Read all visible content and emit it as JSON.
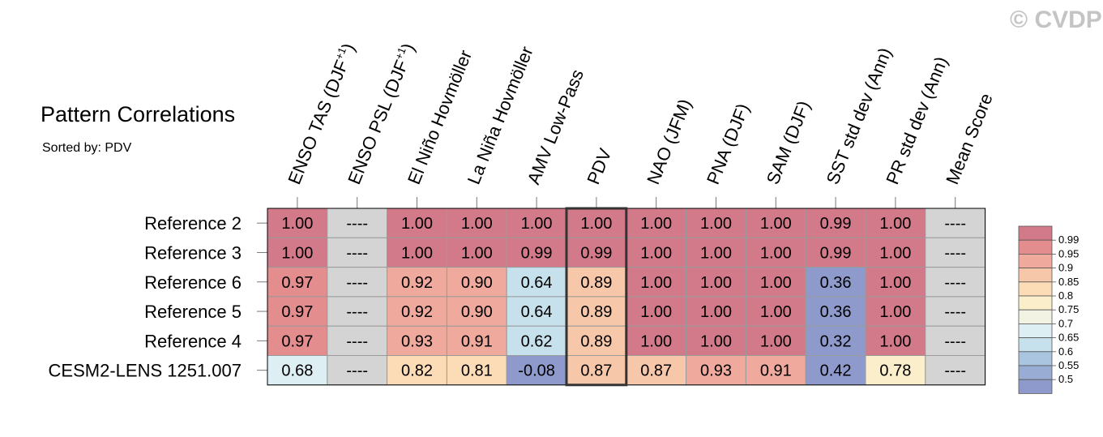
{
  "title": "Pattern Correlations",
  "subtitle": "Sorted by: PDV",
  "credit": "© CVDP",
  "chart_data": {
    "type": "heatmap",
    "columns": [
      "ENSO TAS (DJF+1)",
      "ENSO PSL (DJF+1)",
      "El Niño Hovmöller",
      "La Niña Hovmöller",
      "AMV Low-Pass",
      "PDV",
      "NAO (JFM)",
      "PNA (DJF)",
      "SAM (DJF)",
      "SST std dev (Ann)",
      "PR std dev (Ann)",
      "Mean Score"
    ],
    "rows": [
      "Reference 2",
      "Reference 3",
      "Reference 6",
      "Reference 5",
      "Reference 4",
      "CESM2-LENS 1251.007"
    ],
    "cells": [
      [
        "1.00",
        "----",
        "1.00",
        "1.00",
        "1.00",
        "1.00",
        "1.00",
        "1.00",
        "1.00",
        "0.99",
        "1.00",
        "----"
      ],
      [
        "1.00",
        "----",
        "1.00",
        "1.00",
        "0.99",
        "0.99",
        "1.00",
        "1.00",
        "1.00",
        "0.99",
        "1.00",
        "----"
      ],
      [
        "0.97",
        "----",
        "0.92",
        "0.90",
        "0.64",
        "0.89",
        "1.00",
        "1.00",
        "1.00",
        "0.36",
        "1.00",
        "----"
      ],
      [
        "0.97",
        "----",
        "0.92",
        "0.90",
        "0.64",
        "0.89",
        "1.00",
        "1.00",
        "1.00",
        "0.36",
        "1.00",
        "----"
      ],
      [
        "0.97",
        "----",
        "0.93",
        "0.91",
        "0.62",
        "0.89",
        "1.00",
        "1.00",
        "1.00",
        "0.32",
        "1.00",
        "----"
      ],
      [
        "0.68",
        "----",
        "0.82",
        "0.81",
        "-0.08",
        "0.87",
        "0.87",
        "0.93",
        "0.91",
        "0.42",
        "0.78",
        "----"
      ]
    ],
    "highlighted_column": "PDV",
    "missing_color": "#d4d4d4",
    "colorbar": {
      "labels": [
        "0.99",
        "0.95",
        "0.9",
        "0.85",
        "0.8",
        "0.75",
        "0.7",
        "0.65",
        "0.6",
        "0.55",
        "0.5"
      ],
      "colors": [
        "#d27a8a",
        "#e48d8e",
        "#f0aa9d",
        "#f7c7a9",
        "#fcdcb6",
        "#fbeecb",
        "#f2f3e3",
        "#ddeff3",
        "#c6e0ec",
        "#aac5df",
        "#98acd4",
        "#8d9acb"
      ]
    }
  }
}
